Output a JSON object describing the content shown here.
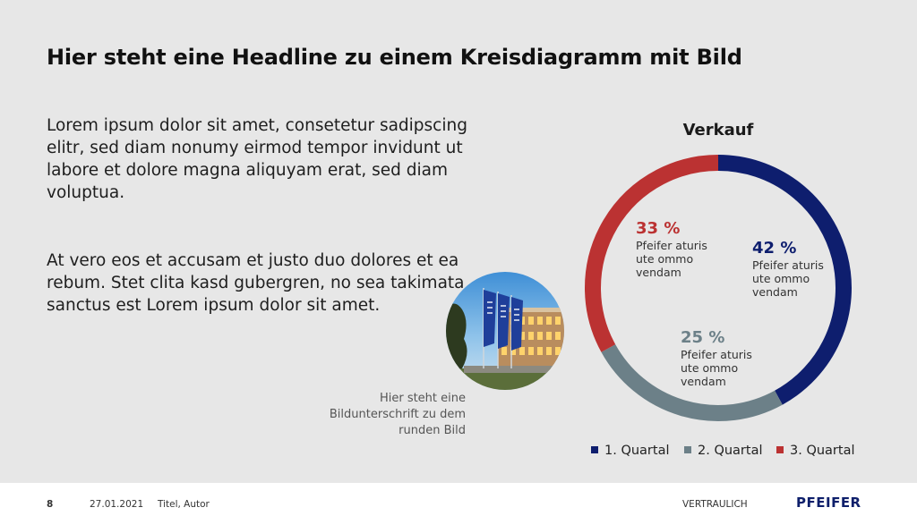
{
  "headline": "Hier steht eine Headline zu einem Kreisdiagramm mit Bild",
  "paragraphs": [
    "Lorem ipsum dolor sit amet, consetetur sadipscing elitr, sed diam nonumy eirmod tempor invidunt ut labore et dolore magna aliquyam erat, sed diam voluptua.",
    "At vero eos et accusam et justo duo dolores et ea rebum. Stet clita kasd gubergren, no sea takimata sanctus est Lorem ipsum dolor sit amet."
  ],
  "caption": [
    "Hier steht eine",
    "Bildunterschrift zu dem",
    "runden Bild"
  ],
  "chart_data": {
    "type": "pie",
    "title": "Verkauf",
    "donut": true,
    "legend_position": "bottom",
    "series": [
      {
        "name": "1. Quartal",
        "value": 42,
        "label": "42 %",
        "sublabel": [
          "Pfeifer aturis",
          "ute ommo",
          "vendam"
        ],
        "color": "#0e1e6e"
      },
      {
        "name": "2. Quartal",
        "value": 25,
        "label": "25 %",
        "sublabel": [
          "Pfeifer aturis",
          "ute ommo",
          "vendam"
        ],
        "color": "#6c8088"
      },
      {
        "name": "3. Quartal",
        "value": 33,
        "label": "33 %",
        "sublabel": [
          "Pfeifer aturis",
          "ute ommo",
          "vendam"
        ],
        "color": "#bb3232"
      }
    ]
  },
  "footer": {
    "page": "8",
    "date": "27.01.2021",
    "title": "Titel, Autor",
    "confidential": "VERTRAULICH",
    "logo": "PFEIFER"
  }
}
